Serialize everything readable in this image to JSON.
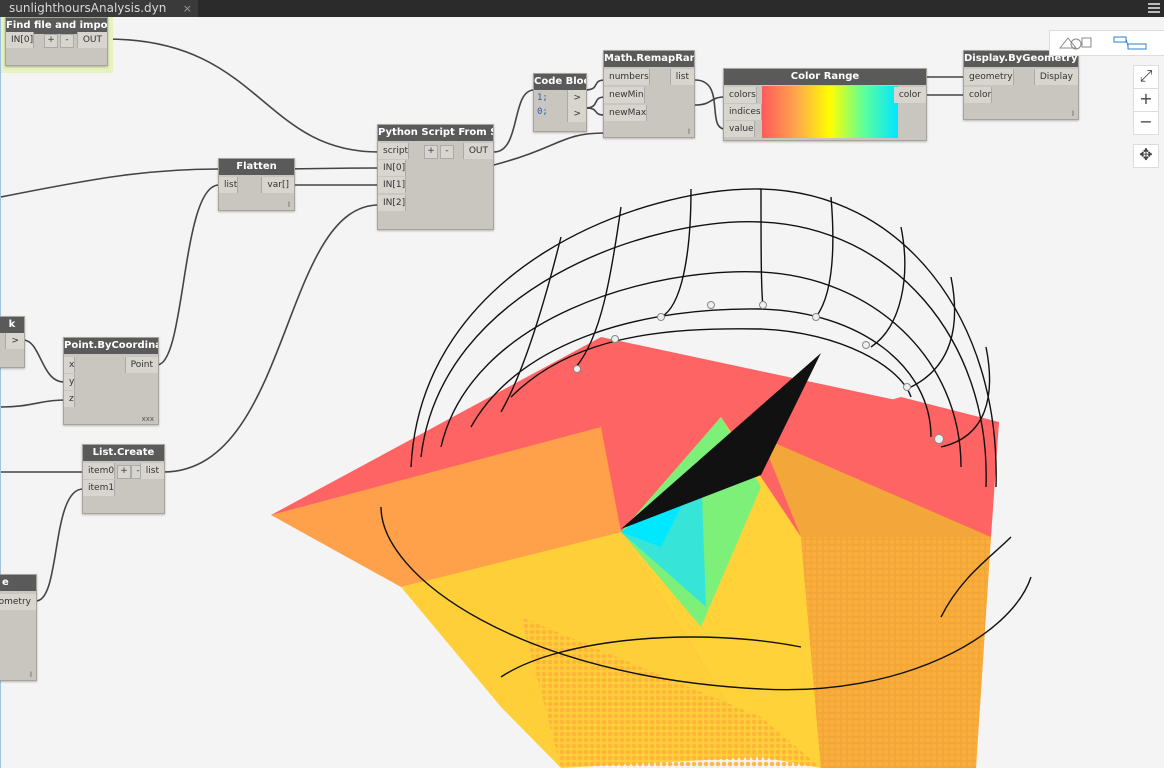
{
  "tab": {
    "title": "sunlighthoursAnalysis.dyn",
    "close": "×"
  },
  "nodes": {
    "find_file": {
      "title": "Find file and import it",
      "in0": "IN[0]",
      "plus": "+",
      "minus": "-",
      "out": "OUT"
    },
    "code_block": {
      "title": "Code Block",
      "line1": "1;",
      "line2": "0;",
      "out": ">"
    },
    "remap": {
      "title": "Math.RemapRange",
      "in_numbers": "numbers",
      "in_newmin": "newMin",
      "in_newmax": "newMax",
      "out": "list",
      "foot": "l"
    },
    "color_range": {
      "title": "Color Range",
      "in_colors": "colors",
      "in_indices": "indices",
      "in_value": "value",
      "out": "color"
    },
    "display": {
      "title": "Display.ByGeometryColor",
      "in_geometry": "geometry",
      "in_color": "color",
      "out": "Display",
      "foot": "l"
    },
    "python": {
      "title": "Python Script From String",
      "in_script": "script",
      "in0": "IN[0]",
      "in1": "IN[1]",
      "in2": "IN[2]",
      "plus": "+",
      "minus": "-",
      "out": "OUT"
    },
    "flatten": {
      "title": "Flatten",
      "in": "list",
      "out": "var[]",
      "foot": "l"
    },
    "partial_left": {
      "title": "k",
      "out": ">"
    },
    "point": {
      "title": "Point.ByCoordinates",
      "in_x": "x",
      "in_y": "y",
      "in_z": "z",
      "out": "Point",
      "foot": "xxx"
    },
    "list_create": {
      "title": "List.Create",
      "in0": "item0",
      "in1": "item1",
      "plus": "+",
      "minus": "-",
      "out": "list"
    },
    "partial_geometry": {
      "title": "e",
      "out": "ometry",
      "foot": "l"
    }
  },
  "colors": {
    "node_header": "#5a5a5a",
    "node_body": "#c9c5bf",
    "selected_glow": "#e6f2c0"
  }
}
